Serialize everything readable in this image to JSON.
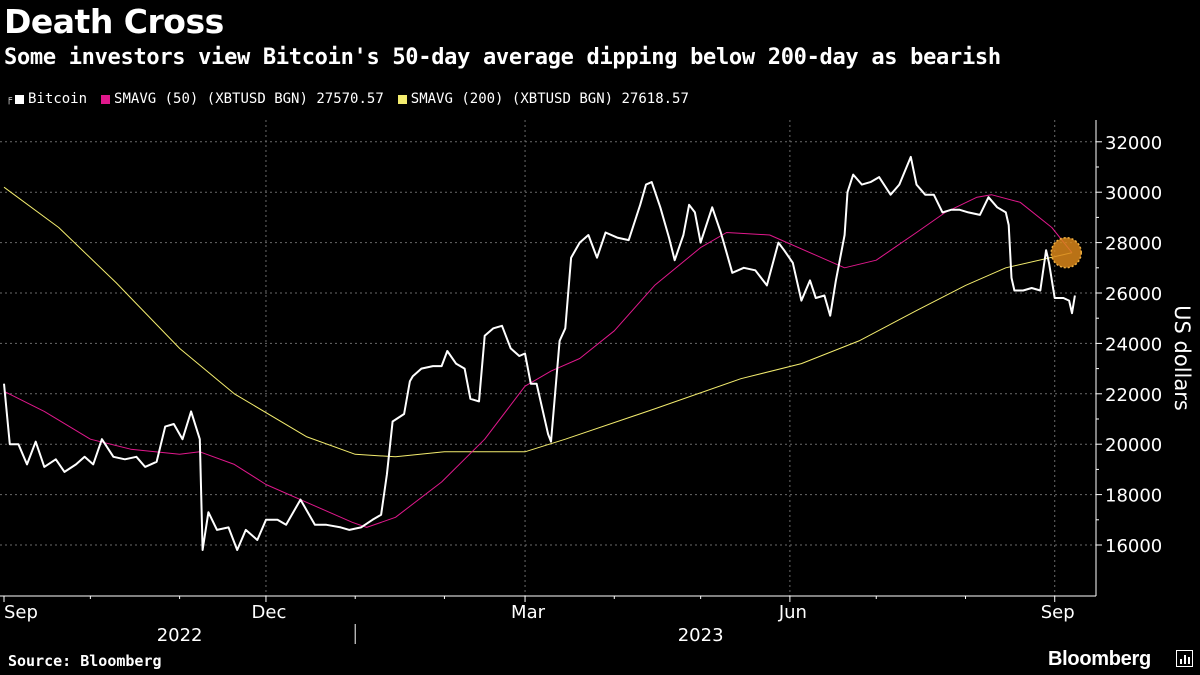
{
  "header": {
    "title": "Death Cross",
    "subtitle": "Some investors view Bitcoin's 50-day average dipping below 200-day as bearish"
  },
  "legend": [
    {
      "label": "Bitcoin",
      "color": "#ffffff"
    },
    {
      "label": "SMAVG (50) (XBTUSD BGN) 27570.57",
      "color": "#e0188c"
    },
    {
      "label": "SMAVG (200) (XBTUSD BGN) 27618.57",
      "color": "#f3ec6e"
    }
  ],
  "footer": {
    "source": "Source: Bloomberg",
    "brand": "Bloomberg"
  },
  "chart_data": {
    "type": "line",
    "ylabel": "US dollars",
    "ylim": [
      15000,
      33000
    ],
    "yticks": [
      16000,
      18000,
      20000,
      22000,
      24000,
      26000,
      28000,
      30000,
      32000
    ],
    "x_range": [
      "2022-09-01",
      "2023-09-07"
    ],
    "x_ticks": [
      {
        "label": "Sep",
        "date": "2022-09-01"
      },
      {
        "label": "Dec",
        "date": "2022-12-01"
      },
      {
        "label": "Mar",
        "date": "2023-03-01"
      },
      {
        "label": "Jun",
        "date": "2023-06-01"
      },
      {
        "label": "Sep",
        "date": "2023-09-01"
      }
    ],
    "minor_ticks": [
      "2022-10-01",
      "2022-11-01",
      "2023-01-01",
      "2023-02-01",
      "2023-04-01",
      "2023-05-01",
      "2023-07-01",
      "2023-08-01"
    ],
    "year_labels": [
      {
        "label": "2022",
        "date": "2022-11-01"
      },
      {
        "label": "2023",
        "date": "2023-05-01"
      }
    ],
    "year_divider": "2023-01-01",
    "grid": true,
    "legend_position": "top-left",
    "annotation": {
      "type": "circle",
      "date": "2023-09-05",
      "value": 27600,
      "note": "cross point"
    },
    "series": [
      {
        "name": "Bitcoin",
        "color": "#ffffff",
        "points": [
          [
            "2022-09-01",
            22400
          ],
          [
            "2022-09-03",
            20000
          ],
          [
            "2022-09-06",
            20000
          ],
          [
            "2022-09-09",
            19200
          ],
          [
            "2022-09-12",
            20100
          ],
          [
            "2022-09-15",
            19100
          ],
          [
            "2022-09-19",
            19400
          ],
          [
            "2022-09-22",
            18900
          ],
          [
            "2022-09-26",
            19200
          ],
          [
            "2022-09-29",
            19500
          ],
          [
            "2022-10-02",
            19200
          ],
          [
            "2022-10-05",
            20200
          ],
          [
            "2022-10-09",
            19500
          ],
          [
            "2022-10-13",
            19400
          ],
          [
            "2022-10-17",
            19500
          ],
          [
            "2022-10-20",
            19100
          ],
          [
            "2022-10-24",
            19300
          ],
          [
            "2022-10-27",
            20700
          ],
          [
            "2022-10-30",
            20800
          ],
          [
            "2022-11-02",
            20200
          ],
          [
            "2022-11-05",
            21300
          ],
          [
            "2022-11-08",
            20200
          ],
          [
            "2022-11-09",
            15800
          ],
          [
            "2022-11-11",
            17300
          ],
          [
            "2022-11-14",
            16600
          ],
          [
            "2022-11-18",
            16700
          ],
          [
            "2022-11-21",
            15800
          ],
          [
            "2022-11-24",
            16600
          ],
          [
            "2022-11-28",
            16200
          ],
          [
            "2022-12-01",
            17000
          ],
          [
            "2022-12-05",
            17000
          ],
          [
            "2022-12-08",
            16800
          ],
          [
            "2022-12-13",
            17800
          ],
          [
            "2022-12-15",
            17400
          ],
          [
            "2022-12-18",
            16800
          ],
          [
            "2022-12-22",
            16800
          ],
          [
            "2022-12-27",
            16700
          ],
          [
            "2022-12-30",
            16600
          ],
          [
            "2023-01-03",
            16700
          ],
          [
            "2023-01-07",
            17000
          ],
          [
            "2023-01-10",
            17200
          ],
          [
            "2023-01-12",
            18800
          ],
          [
            "2023-01-14",
            20900
          ],
          [
            "2023-01-18",
            21200
          ],
          [
            "2023-01-20",
            22500
          ],
          [
            "2023-01-21",
            22700
          ],
          [
            "2023-01-24",
            23000
          ],
          [
            "2023-01-28",
            23100
          ],
          [
            "2023-01-31",
            23100
          ],
          [
            "2023-02-02",
            23700
          ],
          [
            "2023-02-05",
            23200
          ],
          [
            "2023-02-08",
            23000
          ],
          [
            "2023-02-10",
            21800
          ],
          [
            "2023-02-13",
            21700
          ],
          [
            "2023-02-15",
            24300
          ],
          [
            "2023-02-18",
            24600
          ],
          [
            "2023-02-21",
            24700
          ],
          [
            "2023-02-24",
            23800
          ],
          [
            "2023-02-27",
            23500
          ],
          [
            "2023-03-01",
            23600
          ],
          [
            "2023-03-03",
            22400
          ],
          [
            "2023-03-05",
            22400
          ],
          [
            "2023-03-09",
            20400
          ],
          [
            "2023-03-10",
            20100
          ],
          [
            "2023-03-13",
            24100
          ],
          [
            "2023-03-15",
            24600
          ],
          [
            "2023-03-17",
            27400
          ],
          [
            "2023-03-20",
            28000
          ],
          [
            "2023-03-23",
            28300
          ],
          [
            "2023-03-26",
            27400
          ],
          [
            "2023-03-29",
            28400
          ],
          [
            "2023-04-02",
            28200
          ],
          [
            "2023-04-06",
            28100
          ],
          [
            "2023-04-10",
            29500
          ],
          [
            "2023-04-12",
            30300
          ],
          [
            "2023-04-14",
            30400
          ],
          [
            "2023-04-17",
            29400
          ],
          [
            "2023-04-20",
            28200
          ],
          [
            "2023-04-22",
            27300
          ],
          [
            "2023-04-25",
            28300
          ],
          [
            "2023-04-27",
            29500
          ],
          [
            "2023-04-29",
            29200
          ],
          [
            "2023-05-01",
            28000
          ],
          [
            "2023-05-05",
            29400
          ],
          [
            "2023-05-08",
            28400
          ],
          [
            "2023-05-10",
            27600
          ],
          [
            "2023-05-12",
            26800
          ],
          [
            "2023-05-16",
            27000
          ],
          [
            "2023-05-20",
            26900
          ],
          [
            "2023-05-24",
            26300
          ],
          [
            "2023-05-28",
            28000
          ],
          [
            "2023-05-30",
            27700
          ],
          [
            "2023-06-02",
            27200
          ],
          [
            "2023-06-05",
            25700
          ],
          [
            "2023-06-08",
            26500
          ],
          [
            "2023-06-10",
            25800
          ],
          [
            "2023-06-13",
            25900
          ],
          [
            "2023-06-15",
            25100
          ],
          [
            "2023-06-17",
            26500
          ],
          [
            "2023-06-20",
            28300
          ],
          [
            "2023-06-21",
            30000
          ],
          [
            "2023-06-23",
            30700
          ],
          [
            "2023-06-26",
            30300
          ],
          [
            "2023-06-29",
            30400
          ],
          [
            "2023-07-02",
            30600
          ],
          [
            "2023-07-06",
            29900
          ],
          [
            "2023-07-09",
            30300
          ],
          [
            "2023-07-13",
            31400
          ],
          [
            "2023-07-15",
            30300
          ],
          [
            "2023-07-18",
            29900
          ],
          [
            "2023-07-21",
            29900
          ],
          [
            "2023-07-24",
            29200
          ],
          [
            "2023-07-27",
            29300
          ],
          [
            "2023-07-30",
            29300
          ],
          [
            "2023-08-02",
            29200
          ],
          [
            "2023-08-06",
            29100
          ],
          [
            "2023-08-09",
            29800
          ],
          [
            "2023-08-12",
            29400
          ],
          [
            "2023-08-15",
            29200
          ],
          [
            "2023-08-16",
            28700
          ],
          [
            "2023-08-17",
            26600
          ],
          [
            "2023-08-18",
            26100
          ],
          [
            "2023-08-21",
            26100
          ],
          [
            "2023-08-24",
            26200
          ],
          [
            "2023-08-27",
            26100
          ],
          [
            "2023-08-29",
            27700
          ],
          [
            "2023-08-30",
            27200
          ],
          [
            "2023-09-01",
            25800
          ],
          [
            "2023-09-04",
            25800
          ],
          [
            "2023-09-06",
            25700
          ],
          [
            "2023-09-07",
            25200
          ],
          [
            "2023-09-08",
            25900
          ]
        ]
      },
      {
        "name": "SMAVG (50) (XBTUSD BGN) 27570.57",
        "color": "#e0188c",
        "points": [
          [
            "2022-09-01",
            22100
          ],
          [
            "2022-09-15",
            21300
          ],
          [
            "2022-10-01",
            20200
          ],
          [
            "2022-10-15",
            19800
          ],
          [
            "2022-11-01",
            19600
          ],
          [
            "2022-11-08",
            19700
          ],
          [
            "2022-11-20",
            19200
          ],
          [
            "2022-12-01",
            18400
          ],
          [
            "2022-12-15",
            17700
          ],
          [
            "2022-12-31",
            16900
          ],
          [
            "2023-01-05",
            16700
          ],
          [
            "2023-01-15",
            17100
          ],
          [
            "2023-01-31",
            18500
          ],
          [
            "2023-02-15",
            20200
          ],
          [
            "2023-03-01",
            22300
          ],
          [
            "2023-03-10",
            22900
          ],
          [
            "2023-03-20",
            23400
          ],
          [
            "2023-04-01",
            24500
          ],
          [
            "2023-04-15",
            26300
          ],
          [
            "2023-05-01",
            27800
          ],
          [
            "2023-05-10",
            28400
          ],
          [
            "2023-05-25",
            28300
          ],
          [
            "2023-06-10",
            27500
          ],
          [
            "2023-06-20",
            27000
          ],
          [
            "2023-07-01",
            27300
          ],
          [
            "2023-07-15",
            28400
          ],
          [
            "2023-07-25",
            29200
          ],
          [
            "2023-08-05",
            29800
          ],
          [
            "2023-08-10",
            29900
          ],
          [
            "2023-08-20",
            29600
          ],
          [
            "2023-08-31",
            28600
          ],
          [
            "2023-09-07",
            27600
          ]
        ]
      },
      {
        "name": "SMAVG (200) (XBTUSD BGN) 27618.57",
        "color": "#f3ec6e",
        "points": [
          [
            "2022-09-01",
            30200
          ],
          [
            "2022-09-20",
            28600
          ],
          [
            "2022-10-10",
            26400
          ],
          [
            "2022-11-01",
            23800
          ],
          [
            "2022-11-20",
            22000
          ],
          [
            "2022-12-15",
            20300
          ],
          [
            "2023-01-01",
            19600
          ],
          [
            "2023-01-15",
            19500
          ],
          [
            "2023-02-01",
            19700
          ],
          [
            "2023-03-01",
            19700
          ],
          [
            "2023-03-15",
            20200
          ],
          [
            "2023-04-15",
            21400
          ],
          [
            "2023-05-15",
            22600
          ],
          [
            "2023-06-05",
            23200
          ],
          [
            "2023-06-25",
            24100
          ],
          [
            "2023-07-15",
            25300
          ],
          [
            "2023-08-01",
            26300
          ],
          [
            "2023-08-15",
            27000
          ],
          [
            "2023-09-07",
            27600
          ]
        ]
      }
    ]
  }
}
